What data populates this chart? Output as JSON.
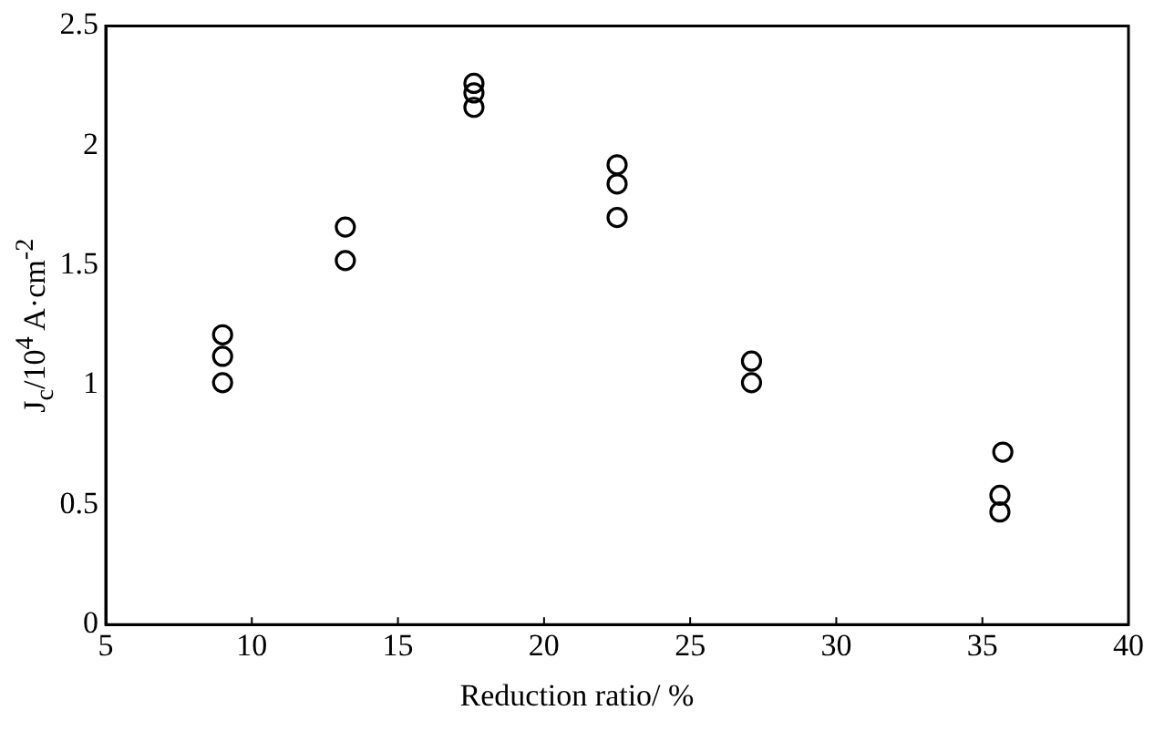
{
  "chart_data": {
    "type": "scatter",
    "xlabel": "Reduction ratio/ %",
    "ylabel": "J$_{c}$/10$^{4}$ A·cm$^{-2}$",
    "xlim": [
      5,
      40
    ],
    "xticks": [
      5,
      10,
      15,
      20,
      25,
      30,
      35,
      40
    ],
    "ylim": [
      0,
      2.5
    ],
    "yticks": [
      0,
      0.5,
      1,
      1.5,
      2,
      2.5
    ],
    "grid": false,
    "legend": false,
    "marker": "circle",
    "series": [
      {
        "color": "#000000",
        "x": [
          9,
          9,
          9,
          13.2,
          13.2,
          17.6,
          17.6,
          17.6,
          22.5,
          22.5,
          22.5,
          27.1,
          27.1,
          35.7,
          35.6,
          35.6
        ],
        "values": [
          1.21,
          1.12,
          1.01,
          1.66,
          1.52,
          2.26,
          2.22,
          2.16,
          1.92,
          1.84,
          1.7,
          1.1,
          1.01,
          0.72,
          0.54,
          0.47
        ]
      }
    ]
  }
}
